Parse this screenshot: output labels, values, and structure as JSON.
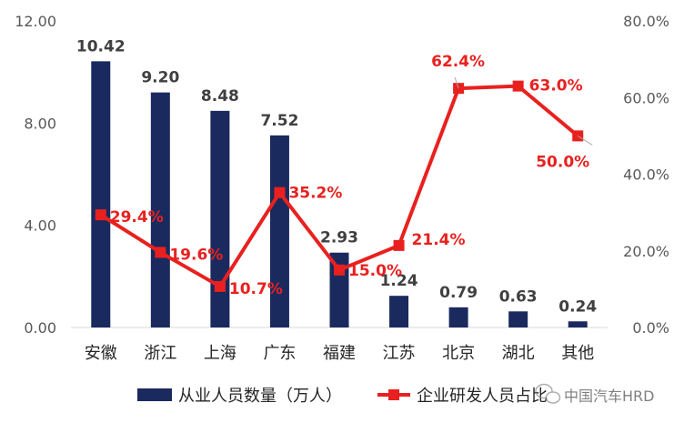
{
  "chart_data": {
    "type": "bar",
    "categories": [
      "安徽",
      "浙江",
      "上海",
      "广东",
      "福建",
      "江苏",
      "北京",
      "湖北",
      "其他"
    ],
    "series": [
      {
        "name": "从业人员数量（万人）",
        "type": "bar",
        "axis": "left",
        "values": [
          10.42,
          9.2,
          8.48,
          7.52,
          2.93,
          1.24,
          0.79,
          0.63,
          0.24
        ],
        "labels": [
          "10.42",
          "9.20",
          "8.48",
          "7.52",
          "2.93",
          "1.24",
          "0.79",
          "0.63",
          "0.24"
        ],
        "color": "#1b2a5e"
      },
      {
        "name": "企业研发人员占比",
        "type": "line",
        "axis": "right",
        "values": [
          29.4,
          19.6,
          10.7,
          35.2,
          15.0,
          21.4,
          62.4,
          63.0,
          50.0
        ],
        "labels": [
          "29.4%",
          "19.6%",
          "10.7%",
          "35.2%",
          "15.0%",
          "21.4%",
          "62.4%",
          "63.0%",
          "50.0%"
        ],
        "color": "#e8211f"
      }
    ],
    "y_left": {
      "ticks": [
        "0.00",
        "4.00",
        "8.00",
        "12.00"
      ],
      "ylim": [
        0,
        12
      ]
    },
    "y_right": {
      "ticks": [
        "0.0%",
        "20.0%",
        "40.0%",
        "60.0%",
        "80.0%"
      ],
      "ylim": [
        0,
        80
      ]
    },
    "legend_position": "bottom",
    "grid": false
  },
  "watermark": {
    "text": "中国汽车HRD",
    "icon": "wechat-icon"
  }
}
